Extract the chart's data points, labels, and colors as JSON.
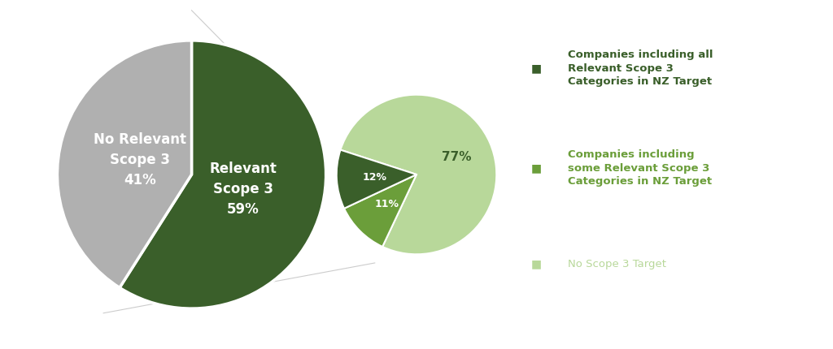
{
  "left_pie": {
    "values": [
      59,
      41
    ],
    "colors": [
      "#3a5f2a",
      "#b0b0b0"
    ],
    "labels": [
      "Relevant\nScope 3\n59%",
      "No Relevant\nScope 3\n41%"
    ],
    "label_colors": [
      "#ffffff",
      "#ffffff"
    ],
    "startangle": 90
  },
  "right_pie": {
    "values": [
      77,
      11,
      12
    ],
    "colors": [
      "#b8d89a",
      "#6b9e3a",
      "#3a5f2a"
    ],
    "labels": [
      "77%",
      "11%",
      "12%"
    ],
    "label_colors": [
      "#3a5f2a",
      "#ffffff",
      "#ffffff"
    ],
    "startangle": 162
  },
  "legend": [
    {
      "label": "Companies including all\nRelevant Scope 3\nCategories in NZ Target",
      "color": "#3a5f2a",
      "bold": true
    },
    {
      "label": "Companies including\nsome Relevant Scope 3\nCategories in NZ Target",
      "color": "#6b9e3a",
      "bold": true
    },
    {
      "label": "No Scope 3 Target",
      "color": "#b8d89a",
      "bold": false
    }
  ],
  "background_color": "#ffffff",
  "connector_color": "#cccccc"
}
